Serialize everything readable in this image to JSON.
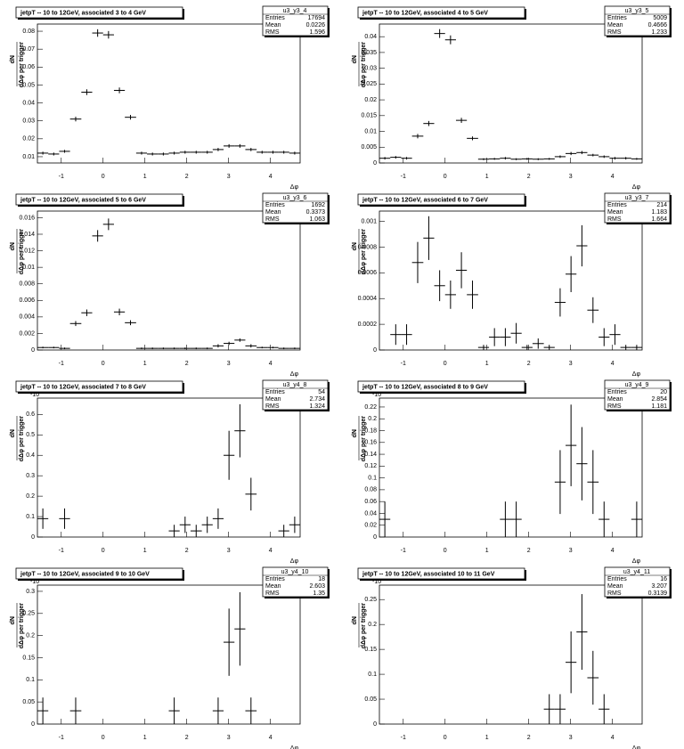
{
  "chart_data": [
    {
      "type": "histogram",
      "title": "jetpT -- 10 to 12GeV, associated 3 to 4 GeV",
      "name": "u3_y3_4",
      "stats": [
        {
          "label": "Entries",
          "value": 17694
        },
        {
          "label": "Mean",
          "value": 0.0226
        },
        {
          "label": "RMS",
          "value": 1.596
        }
      ],
      "xlabel": "Δφ",
      "ylabel_top": "dN",
      "ylabel_bottom": "dΔφ per trigger",
      "bins": [
        -1.57,
        -1.31,
        -1.05,
        -0.79,
        -0.52,
        -0.26,
        0,
        0.26,
        0.52,
        0.79,
        1.05,
        1.31,
        1.57,
        1.83,
        2.09,
        2.36,
        2.62,
        2.88,
        3.14,
        3.4,
        3.67,
        3.93,
        4.19,
        4.45,
        4.71
      ],
      "values": [
        0.012,
        0.0115,
        0.013,
        0.031,
        0.046,
        0.079,
        0.078,
        0.047,
        0.032,
        0.012,
        0.0115,
        0.0115,
        0.012,
        0.0125,
        0.0125,
        0.0125,
        0.014,
        0.016,
        0.016,
        0.014,
        0.0125,
        0.0125,
        0.0125,
        0.012
      ],
      "errors": [
        0.0008,
        0.0008,
        0.0008,
        0.0013,
        0.0016,
        0.0021,
        0.0021,
        0.0016,
        0.0013,
        0.0008,
        0.0008,
        0.0008,
        0.0008,
        0.0008,
        0.0008,
        0.0008,
        0.0009,
        0.001,
        0.001,
        0.0009,
        0.0008,
        0.0008,
        0.0008,
        0.0008
      ],
      "xlim": [
        -1.57,
        4.71
      ],
      "xticks": [
        -1,
        0,
        1,
        2,
        3,
        4
      ],
      "ylim": [
        0.0065,
        0.084
      ],
      "yticks": [
        0.01,
        0.02,
        0.03,
        0.04,
        0.05,
        0.06,
        0.07,
        0.08
      ]
    },
    {
      "type": "histogram",
      "title": "jetpT -- 10 to 12GeV, associated 4 to 5 GeV",
      "name": "u3_y3_5",
      "stats": [
        {
          "label": "Entries",
          "value": 5009
        },
        {
          "label": "Mean",
          "value": 0.4666
        },
        {
          "label": "RMS",
          "value": 1.233
        }
      ],
      "xlabel": "Δφ",
      "ylabel_top": "dN",
      "ylabel_bottom": "dΔφ per trigger",
      "bins": [
        -1.57,
        -1.31,
        -1.05,
        -0.79,
        -0.52,
        -0.26,
        0,
        0.26,
        0.52,
        0.79,
        1.05,
        1.31,
        1.57,
        1.83,
        2.09,
        2.36,
        2.62,
        2.88,
        3.14,
        3.4,
        3.67,
        3.93,
        4.19,
        4.45,
        4.71
      ],
      "values": [
        0.0015,
        0.0018,
        0.0015,
        0.0085,
        0.0125,
        0.041,
        0.039,
        0.0135,
        0.0078,
        0.0012,
        0.0013,
        0.0015,
        0.0012,
        0.0013,
        0.0012,
        0.0013,
        0.002,
        0.003,
        0.0033,
        0.0025,
        0.002,
        0.0015,
        0.0015,
        0.0013
      ],
      "errors": [
        0.0004,
        0.0004,
        0.0004,
        0.0007,
        0.0008,
        0.0014,
        0.0014,
        0.0008,
        0.0006,
        0.0003,
        0.0003,
        0.0004,
        0.0003,
        0.0003,
        0.0003,
        0.0003,
        0.0004,
        0.0005,
        0.0005,
        0.0004,
        0.0004,
        0.0004,
        0.0004,
        0.0003
      ],
      "xlim": [
        -1.57,
        4.71
      ],
      "xticks": [
        -1,
        0,
        1,
        2,
        3,
        4
      ],
      "ylim": [
        0,
        0.044
      ],
      "yticks": [
        0,
        0.005,
        0.01,
        0.015,
        0.02,
        0.025,
        0.03,
        0.035,
        0.04
      ]
    },
    {
      "type": "histogram",
      "title": "jetpT -- 10 to 12GeV, associated 5 to 6 GeV",
      "name": "u3_y3_6",
      "stats": [
        {
          "label": "Entries",
          "value": 1692
        },
        {
          "label": "Mean",
          "value": 0.3373
        },
        {
          "label": "RMS",
          "value": 1.063
        }
      ],
      "xlabel": "Δφ",
      "ylabel_top": "dN",
      "ylabel_bottom": "dΔφ per trigger",
      "bins": [
        -1.57,
        -1.31,
        -1.05,
        -0.79,
        -0.52,
        -0.26,
        0,
        0.26,
        0.52,
        0.79,
        1.05,
        1.31,
        1.57,
        1.83,
        2.09,
        2.36,
        2.62,
        2.88,
        3.14,
        3.4,
        3.67,
        3.93,
        4.19,
        4.45,
        4.71
      ],
      "values": [
        0.0003,
        0.0003,
        0.0002,
        0.0032,
        0.0045,
        0.0138,
        0.0152,
        0.0046,
        0.0033,
        0.0002,
        0.0002,
        0.0002,
        0.0002,
        0.0002,
        0.0002,
        0.0002,
        0.0005,
        0.0008,
        0.0012,
        0.0005,
        0.0003,
        0.0003,
        0.0002,
        0.0002
      ],
      "errors": [
        0.0001,
        0.0001,
        0.0001,
        0.0003,
        0.0004,
        0.0007,
        0.0007,
        0.0004,
        0.0003,
        0.0001,
        0.0001,
        0.0001,
        0.0001,
        0.0001,
        0.0001,
        0.0001,
        0.0002,
        0.0002,
        0.0002,
        0.0002,
        0.0001,
        0.0001,
        0.0001,
        0.0001
      ],
      "xlim": [
        -1.57,
        4.71
      ],
      "xticks": [
        -1,
        0,
        1,
        2,
        3,
        4
      ],
      "ylim": [
        0,
        0.0168
      ],
      "yticks": [
        0,
        0.002,
        0.004,
        0.006,
        0.008,
        0.01,
        0.012,
        0.014,
        0.016
      ]
    },
    {
      "type": "histogram",
      "title": "jetpT -- 10 to 12GeV, associated 6 to 7 GeV",
      "name": "u3_y3_7",
      "stats": [
        {
          "label": "Entries",
          "value": 214
        },
        {
          "label": "Mean",
          "value": 1.183
        },
        {
          "label": "RMS",
          "value": 1.664
        }
      ],
      "xlabel": "Δφ",
      "ylabel_top": "dN",
      "ylabel_bottom": "dΔφ per trigger",
      "bins": [
        -1.57,
        -1.31,
        -1.05,
        -0.79,
        -0.52,
        -0.26,
        0,
        0.26,
        0.52,
        0.79,
        1.05,
        1.31,
        1.57,
        1.83,
        2.09,
        2.36,
        2.62,
        2.88,
        3.14,
        3.4,
        3.67,
        3.93,
        4.19,
        4.45,
        4.71
      ],
      "values": [
        null,
        0.00012,
        0.00012,
        0.00068,
        0.00087,
        0.0005,
        0.00043,
        0.00062,
        0.00043,
        2e-05,
        0.0001,
        0.0001,
        0.00013,
        2e-05,
        5e-05,
        2e-05,
        0.00037,
        0.00059,
        0.00081,
        0.00031,
        0.0001,
        0.00012,
        2e-05,
        2e-05
      ],
      "errors": [
        null,
        8e-05,
        8e-05,
        0.00016,
        0.00017,
        0.00012,
        0.00011,
        0.00014,
        0.00011,
        2e-05,
        7e-05,
        7e-05,
        8e-05,
        2e-05,
        4e-05,
        2e-05,
        0.00011,
        0.00014,
        0.00016,
        0.0001,
        7e-05,
        8e-05,
        2e-05,
        2e-05
      ],
      "xlim": [
        -1.57,
        4.71
      ],
      "xticks": [
        -1,
        0,
        1,
        2,
        3,
        4
      ],
      "ylim": [
        0,
        0.00108
      ],
      "yticks": [
        0,
        0.0002,
        0.0004,
        0.0006,
        0.0008,
        0.001
      ]
    },
    {
      "type": "histogram",
      "title": "jetpT -- 10 to 12GeV, associated 7 to 8 GeV",
      "name": "u3_y4_8",
      "stats": [
        {
          "label": "Entries",
          "value": 54
        },
        {
          "label": "Mean",
          "value": 2.734
        },
        {
          "label": "RMS",
          "value": 1.324
        }
      ],
      "xlabel": "Δφ",
      "ylabel_top": "dN",
      "ylabel_bottom": "dΔφ per trigger",
      "y_exponent": "-10",
      "bins": [
        -1.57,
        -1.31,
        -1.05,
        -0.79,
        -0.52,
        -0.26,
        0,
        0.26,
        0.52,
        0.79,
        1.05,
        1.31,
        1.57,
        1.83,
        2.09,
        2.36,
        2.62,
        2.88,
        3.14,
        3.4,
        3.67,
        3.93,
        4.19,
        4.45,
        4.71
      ],
      "values": [
        0.09,
        null,
        0.09,
        null,
        null,
        null,
        null,
        null,
        null,
        null,
        null,
        null,
        0.03,
        0.06,
        0.03,
        0.06,
        0.09,
        0.4,
        0.52,
        0.21,
        null,
        null,
        0.03,
        0.06
      ],
      "errors": [
        0.05,
        null,
        0.05,
        null,
        null,
        null,
        null,
        null,
        null,
        null,
        null,
        null,
        0.03,
        0.04,
        0.03,
        0.04,
        0.05,
        0.12,
        0.13,
        0.08,
        null,
        null,
        0.03,
        0.04
      ],
      "xlim": [
        -1.57,
        4.71
      ],
      "xticks": [
        -1,
        0,
        1,
        2,
        3,
        4
      ],
      "ylim": [
        0,
        0.68
      ],
      "yticks": [
        0,
        0.1,
        0.2,
        0.3,
        0.4,
        0.5,
        0.6
      ]
    },
    {
      "type": "histogram",
      "title": "jetpT -- 10 to 12GeV, associated 8 to 9 GeV",
      "name": "u3_y4_9",
      "stats": [
        {
          "label": "Entries",
          "value": 20
        },
        {
          "label": "Mean",
          "value": 2.854
        },
        {
          "label": "RMS",
          "value": 1.181
        }
      ],
      "xlabel": "Δφ",
      "ylabel_top": "dN",
      "ylabel_bottom": "dΔφ per trigger",
      "y_exponent": "-10",
      "bins": [
        -1.57,
        -1.31,
        -1.05,
        -0.79,
        -0.52,
        -0.26,
        0,
        0.26,
        0.52,
        0.79,
        1.05,
        1.31,
        1.57,
        1.83,
        2.09,
        2.36,
        2.62,
        2.88,
        3.14,
        3.4,
        3.67,
        3.93,
        4.19,
        4.45,
        4.71
      ],
      "values": [
        0.03,
        null,
        null,
        null,
        null,
        null,
        null,
        null,
        null,
        null,
        null,
        0.03,
        0.03,
        null,
        null,
        null,
        0.093,
        0.155,
        0.124,
        0.093,
        0.03,
        null,
        null,
        0.03
      ],
      "errors": [
        0.03,
        null,
        null,
        null,
        null,
        null,
        null,
        null,
        null,
        null,
        null,
        0.03,
        0.03,
        null,
        null,
        null,
        0.054,
        0.069,
        0.062,
        0.054,
        0.03,
        null,
        null,
        0.03
      ],
      "xlim": [
        -1.57,
        4.71
      ],
      "xticks": [
        -1,
        0,
        1,
        2,
        3,
        4
      ],
      "ylim": [
        0,
        0.235
      ],
      "yticks": [
        0,
        0.02,
        0.04,
        0.06,
        0.08,
        0.1,
        0.12,
        0.14,
        0.16,
        0.18,
        0.2,
        0.22
      ]
    },
    {
      "type": "histogram",
      "title": "jetpT -- 10 to 12GeV, associated 9 to 10 GeV",
      "name": "u3_y4_10",
      "stats": [
        {
          "label": "Entries",
          "value": 18
        },
        {
          "label": "Mean",
          "value": 2.603
        },
        {
          "label": "RMS",
          "value": 1.35
        }
      ],
      "xlabel": "Δφ",
      "ylabel_top": "dN",
      "ylabel_bottom": "dΔφ per trigger",
      "y_exponent": "-10",
      "bins": [
        -1.57,
        -1.31,
        -1.05,
        -0.79,
        -0.52,
        -0.26,
        0,
        0.26,
        0.52,
        0.79,
        1.05,
        1.31,
        1.57,
        1.83,
        2.09,
        2.36,
        2.62,
        2.88,
        3.14,
        3.4,
        3.67,
        3.93,
        4.19,
        4.45,
        4.71
      ],
      "values": [
        0.03,
        null,
        null,
        0.03,
        null,
        null,
        null,
        null,
        null,
        null,
        null,
        null,
        0.03,
        null,
        null,
        null,
        0.03,
        0.185,
        0.215,
        0.03,
        null,
        null,
        null,
        null
      ],
      "errors": [
        0.03,
        null,
        null,
        0.03,
        null,
        null,
        null,
        null,
        null,
        null,
        null,
        null,
        0.03,
        null,
        null,
        null,
        0.03,
        0.076,
        0.083,
        0.03,
        null,
        null,
        null,
        null
      ],
      "xlim": [
        -1.57,
        4.71
      ],
      "xticks": [
        -1,
        0,
        1,
        2,
        3,
        4
      ],
      "ylim": [
        0,
        0.314
      ],
      "yticks": [
        0,
        0.05,
        0.1,
        0.15,
        0.2,
        0.25,
        0.3
      ]
    },
    {
      "type": "histogram",
      "title": "jetpT -- 10 to 12GeV, associated 10 to 11 GeV",
      "name": "u3_y4_11",
      "stats": [
        {
          "label": "Entries",
          "value": 16
        },
        {
          "label": "Mean",
          "value": 3.207
        },
        {
          "label": "RMS",
          "value": 0.3139
        }
      ],
      "xlabel": "Δφ",
      "ylabel_top": "dN",
      "ylabel_bottom": "dΔφ per trigger",
      "y_exponent": "-10",
      "bins": [
        -1.57,
        -1.31,
        -1.05,
        -0.79,
        -0.52,
        -0.26,
        0,
        0.26,
        0.52,
        0.79,
        1.05,
        1.31,
        1.57,
        1.83,
        2.09,
        2.36,
        2.62,
        2.88,
        3.14,
        3.4,
        3.67,
        3.93,
        4.19,
        4.45,
        4.71
      ],
      "values": [
        null,
        null,
        null,
        null,
        null,
        null,
        null,
        null,
        null,
        null,
        null,
        null,
        null,
        null,
        null,
        0.03,
        0.03,
        0.124,
        0.185,
        0.093,
        0.03,
        null,
        null,
        null
      ],
      "errors": [
        null,
        null,
        null,
        null,
        null,
        null,
        null,
        null,
        null,
        null,
        null,
        null,
        null,
        null,
        null,
        0.03,
        0.03,
        0.062,
        0.076,
        0.054,
        0.03,
        null,
        null,
        null
      ],
      "xlim": [
        -1.57,
        4.71
      ],
      "xticks": [
        -1,
        0,
        1,
        2,
        3,
        4
      ],
      "ylim": [
        0,
        0.279
      ],
      "yticks": [
        0,
        0.05,
        0.1,
        0.15,
        0.2,
        0.25
      ]
    }
  ]
}
